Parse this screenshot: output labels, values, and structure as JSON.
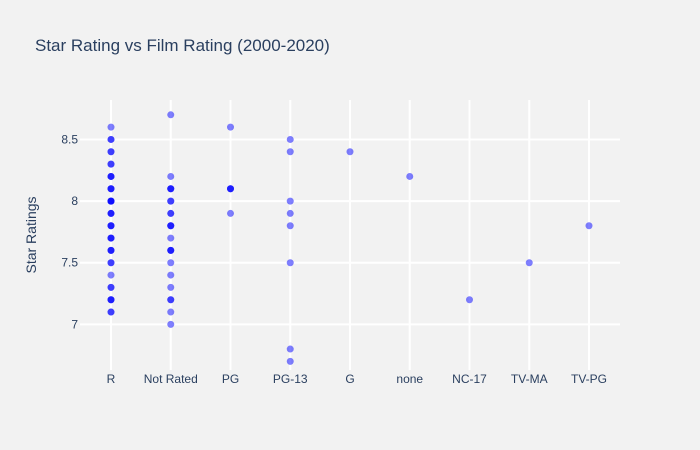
{
  "chart_data": {
    "type": "scatter",
    "title": "Star Rating vs Film Rating  (2000-2020)",
    "xlabel": "",
    "ylabel": "Star Ratings",
    "categories": [
      "R",
      "Not Rated",
      "PG",
      "PG-13",
      "G",
      "none",
      "NC-17",
      "TV-MA",
      "TV-PG"
    ],
    "ylim": [
      6.63,
      8.82
    ],
    "yticks": [
      7,
      7.5,
      8,
      8.5
    ],
    "ytick_labels": [
      "7",
      "7.5",
      "8",
      "8.5"
    ],
    "grid": true,
    "marker_color": "#0000ff",
    "marker_opacity": 0.5,
    "points": [
      {
        "x": "R",
        "y": 8.6
      },
      {
        "x": "R",
        "y": 8.5
      },
      {
        "x": "R",
        "y": 8.5
      },
      {
        "x": "R",
        "y": 8.4
      },
      {
        "x": "R",
        "y": 8.4
      },
      {
        "x": "R",
        "y": 8.3
      },
      {
        "x": "R",
        "y": 8.3
      },
      {
        "x": "R",
        "y": 8.2
      },
      {
        "x": "R",
        "y": 8.2
      },
      {
        "x": "R",
        "y": 8.2
      },
      {
        "x": "R",
        "y": 8.1
      },
      {
        "x": "R",
        "y": 8.1
      },
      {
        "x": "R",
        "y": 8.1
      },
      {
        "x": "R",
        "y": 8.0
      },
      {
        "x": "R",
        "y": 8.0
      },
      {
        "x": "R",
        "y": 8.0
      },
      {
        "x": "R",
        "y": 8.0
      },
      {
        "x": "R",
        "y": 7.9
      },
      {
        "x": "R",
        "y": 7.9
      },
      {
        "x": "R",
        "y": 7.9
      },
      {
        "x": "R",
        "y": 7.8
      },
      {
        "x": "R",
        "y": 7.8
      },
      {
        "x": "R",
        "y": 7.8
      },
      {
        "x": "R",
        "y": 7.7
      },
      {
        "x": "R",
        "y": 7.7
      },
      {
        "x": "R",
        "y": 7.7
      },
      {
        "x": "R",
        "y": 7.6
      },
      {
        "x": "R",
        "y": 7.6
      },
      {
        "x": "R",
        "y": 7.6
      },
      {
        "x": "R",
        "y": 7.5
      },
      {
        "x": "R",
        "y": 7.5
      },
      {
        "x": "R",
        "y": 7.4
      },
      {
        "x": "R",
        "y": 7.3
      },
      {
        "x": "R",
        "y": 7.3
      },
      {
        "x": "R",
        "y": 7.2
      },
      {
        "x": "R",
        "y": 7.2
      },
      {
        "x": "R",
        "y": 7.2
      },
      {
        "x": "R",
        "y": 7.1
      },
      {
        "x": "R",
        "y": 7.1
      },
      {
        "x": "Not Rated",
        "y": 8.7
      },
      {
        "x": "Not Rated",
        "y": 8.2
      },
      {
        "x": "Not Rated",
        "y": 8.1
      },
      {
        "x": "Not Rated",
        "y": 8.1
      },
      {
        "x": "Not Rated",
        "y": 8.1
      },
      {
        "x": "Not Rated",
        "y": 8.0
      },
      {
        "x": "Not Rated",
        "y": 8.0
      },
      {
        "x": "Not Rated",
        "y": 7.9
      },
      {
        "x": "Not Rated",
        "y": 7.9
      },
      {
        "x": "Not Rated",
        "y": 7.8
      },
      {
        "x": "Not Rated",
        "y": 7.8
      },
      {
        "x": "Not Rated",
        "y": 7.8
      },
      {
        "x": "Not Rated",
        "y": 7.7
      },
      {
        "x": "Not Rated",
        "y": 7.6
      },
      {
        "x": "Not Rated",
        "y": 7.6
      },
      {
        "x": "Not Rated",
        "y": 7.6
      },
      {
        "x": "Not Rated",
        "y": 7.5
      },
      {
        "x": "Not Rated",
        "y": 7.4
      },
      {
        "x": "Not Rated",
        "y": 7.3
      },
      {
        "x": "Not Rated",
        "y": 7.2
      },
      {
        "x": "Not Rated",
        "y": 7.2
      },
      {
        "x": "Not Rated",
        "y": 7.1
      },
      {
        "x": "Not Rated",
        "y": 7.0
      },
      {
        "x": "PG",
        "y": 8.6
      },
      {
        "x": "PG",
        "y": 8.1
      },
      {
        "x": "PG",
        "y": 8.1
      },
      {
        "x": "PG",
        "y": 8.1
      },
      {
        "x": "PG",
        "y": 7.9
      },
      {
        "x": "PG-13",
        "y": 8.5
      },
      {
        "x": "PG-13",
        "y": 8.4
      },
      {
        "x": "PG-13",
        "y": 8.0
      },
      {
        "x": "PG-13",
        "y": 7.9
      },
      {
        "x": "PG-13",
        "y": 7.8
      },
      {
        "x": "PG-13",
        "y": 7.5
      },
      {
        "x": "PG-13",
        "y": 6.8
      },
      {
        "x": "PG-13",
        "y": 6.7
      },
      {
        "x": "G",
        "y": 8.4
      },
      {
        "x": "none",
        "y": 8.2
      },
      {
        "x": "NC-17",
        "y": 7.2
      },
      {
        "x": "TV-MA",
        "y": 7.5
      },
      {
        "x": "TV-PG",
        "y": 7.8
      }
    ]
  }
}
